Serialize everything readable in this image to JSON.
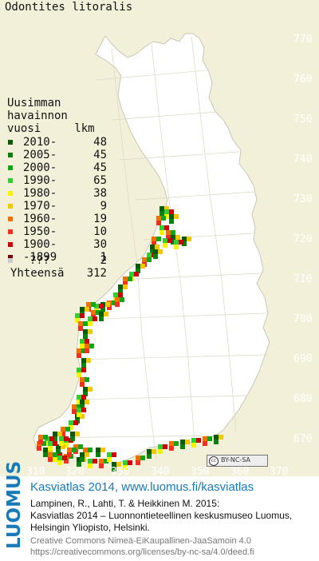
{
  "map": {
    "title": "Odontites litoralis",
    "y_labels": [
      "770",
      "760",
      "750",
      "740",
      "730",
      "720",
      "710",
      "700",
      "690",
      "680",
      "670"
    ],
    "x_labels": [
      "310",
      "320",
      "330",
      "340",
      "350",
      "360",
      "370"
    ],
    "license_badge": "BY-NC-SA",
    "license_icon": "cc"
  },
  "legend": {
    "heading": "Uusimman\nhavainnon\nvuosi     lkm",
    "rows": [
      {
        "label": "2010-",
        "count": "48",
        "color": "#0a5a0a"
      },
      {
        "label": "2005-",
        "count": "45",
        "color": "#0b7f0b"
      },
      {
        "label": "2000-",
        "count": "45",
        "color": "#14a514"
      },
      {
        "label": "1990-",
        "count": "65",
        "color": "#33cc33"
      },
      {
        "label": "1980-",
        "count": "38",
        "color": "#f5f500"
      },
      {
        "label": "1970-",
        "count": "9",
        "color": "#f0c800"
      },
      {
        "label": "1960-",
        "count": "19",
        "color": "#f07000"
      },
      {
        "label": "1950-",
        "count": "10",
        "color": "#ee3020"
      },
      {
        "label": "1900-",
        "count": "30",
        "color": "#cc0000"
      },
      {
        "label": "-1899",
        "count": "1",
        "color": "#7a0000"
      },
      {
        "label": "???",
        "count": "2",
        "color": "#cccccc"
      }
    ],
    "total_label": "Yhteensä",
    "total_count": "312"
  },
  "footer": {
    "logo_text": "LUOMUS",
    "atlas_line": "Kasviatlas 2014, www.luomus.fi/kasviatlas",
    "citation_1": "Lampinen, R., Lahti, T. & Heikkinen M. 2015:",
    "citation_2": "Kasviatlas 2014 – Luonnontieteellinen keskusmuseo Luomus,",
    "citation_3": "Helsingin Yliopisto, Helsinki.",
    "license_1": "Creative Commons Nimeä-EiKaupallinen-JaaSamoin 4.0",
    "license_2": "https://creativecommons.org/licenses/by-nc-sa/4.0/deed.fi",
    "colors": {
      "atlas_blue": "#1a7ab8",
      "license_gray": "#777777"
    }
  }
}
